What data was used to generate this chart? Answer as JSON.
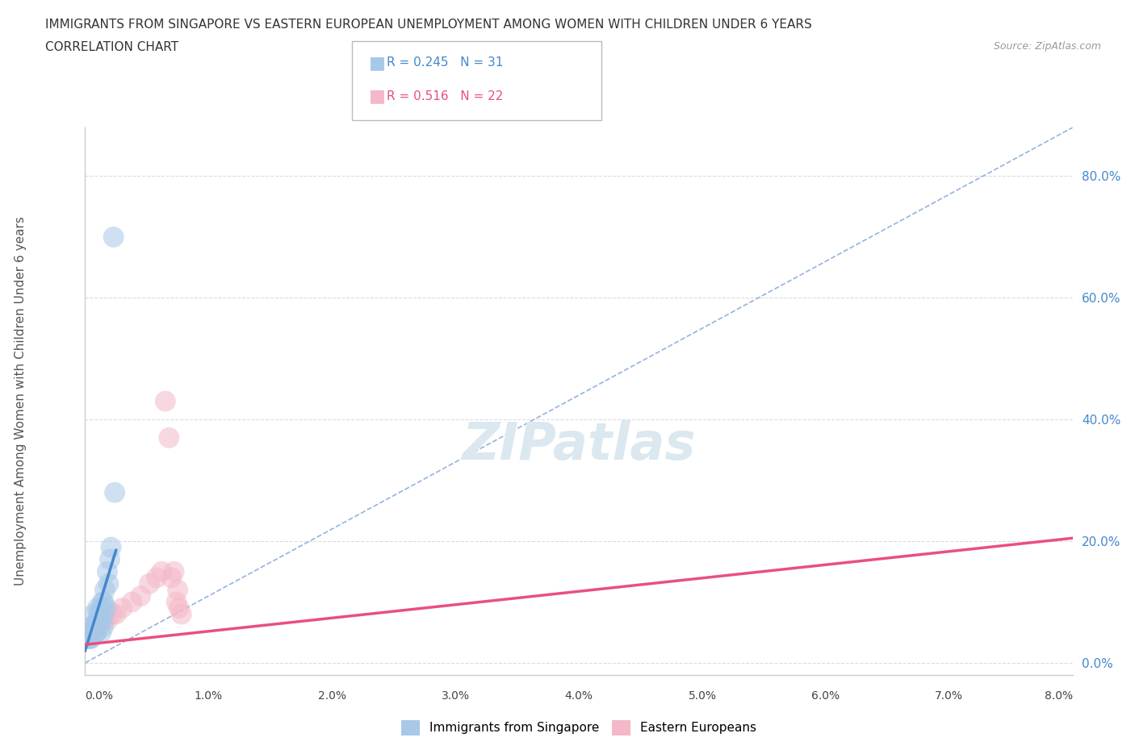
{
  "title_line1": "IMMIGRANTS FROM SINGAPORE VS EASTERN EUROPEAN UNEMPLOYMENT AMONG WOMEN WITH CHILDREN UNDER 6 YEARS",
  "title_line2": "CORRELATION CHART",
  "source": "Source: ZipAtlas.com",
  "ylabel": "Unemployment Among Women with Children Under 6 years",
  "yticks": [
    "0.0%",
    "20.0%",
    "40.0%",
    "60.0%",
    "80.0%"
  ],
  "ytick_vals": [
    0.0,
    0.2,
    0.4,
    0.6,
    0.8
  ],
  "xtick_labels": [
    "0.0%",
    "1.0%",
    "2.0%",
    "3.0%",
    "4.0%",
    "5.0%",
    "6.0%",
    "7.0%",
    "8.0%"
  ],
  "xrange": [
    0.0,
    0.08
  ],
  "yrange": [
    -0.02,
    0.88
  ],
  "legend_r1": "R = 0.245",
  "legend_n1": "N = 31",
  "legend_r2": "R = 0.516",
  "legend_n2": "N = 22",
  "color_blue": "#a8c8e8",
  "color_pink": "#f4b8c8",
  "color_blue_dark": "#4488cc",
  "color_pink_dark": "#e85080",
  "color_dash": "#88aadd",
  "watermark": "ZIPatlas",
  "singapore_x": [
    0.0003,
    0.0005,
    0.0006,
    0.0007,
    0.0008,
    0.0009,
    0.001,
    0.001,
    0.0011,
    0.0012,
    0.0013,
    0.0013,
    0.0014,
    0.0015,
    0.0015,
    0.0016,
    0.0017,
    0.0018,
    0.0019,
    0.002,
    0.0021,
    0.0023,
    0.0024,
    0.0005,
    0.0007,
    0.0009,
    0.0011,
    0.0013,
    0.0015,
    0.0004,
    0.0008
  ],
  "singapore_y": [
    0.04,
    0.06,
    0.05,
    0.08,
    0.06,
    0.05,
    0.07,
    0.09,
    0.06,
    0.07,
    0.09,
    0.05,
    0.1,
    0.08,
    0.06,
    0.12,
    0.09,
    0.15,
    0.13,
    0.17,
    0.19,
    0.7,
    0.28,
    0.04,
    0.06,
    0.05,
    0.08,
    0.07,
    0.1,
    0.04,
    0.05
  ],
  "eastern_x": [
    0.0003,
    0.0005,
    0.0008,
    0.001,
    0.0015,
    0.0018,
    0.0022,
    0.0025,
    0.003,
    0.0038,
    0.0045,
    0.0052,
    0.0058,
    0.0062,
    0.0065,
    0.0068,
    0.007,
    0.0072,
    0.0074,
    0.0075,
    0.0076,
    0.0078
  ],
  "eastern_y": [
    0.04,
    0.05,
    0.05,
    0.06,
    0.07,
    0.07,
    0.08,
    0.08,
    0.09,
    0.1,
    0.11,
    0.13,
    0.14,
    0.15,
    0.43,
    0.37,
    0.14,
    0.15,
    0.1,
    0.12,
    0.09,
    0.08
  ],
  "sg_trend_x": [
    0.0,
    0.0025
  ],
  "sg_trend_y": [
    0.02,
    0.185
  ],
  "ee_trend_x": [
    0.0,
    0.08
  ],
  "ee_trend_y": [
    0.03,
    0.205
  ],
  "dash_line_x": [
    0.0,
    0.08
  ],
  "dash_line_y": [
    0.0,
    0.88
  ],
  "bg_color": "#ffffff",
  "grid_color": "#e0e0e0"
}
